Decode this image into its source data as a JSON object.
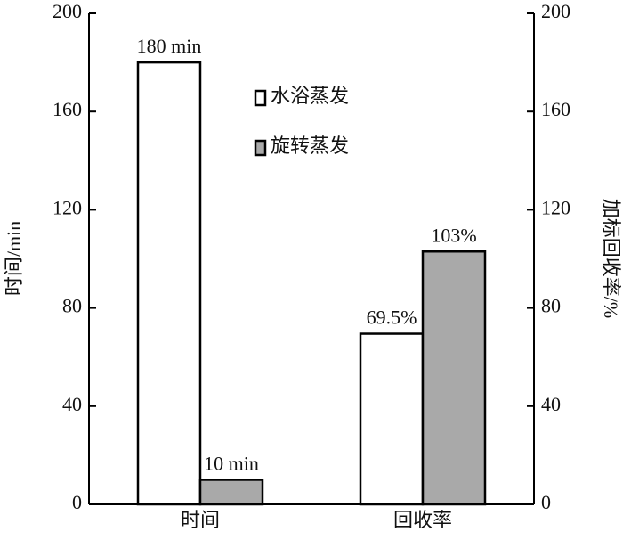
{
  "chart_data": {
    "type": "bar",
    "categories": [
      "时间",
      "回收率"
    ],
    "series": [
      {
        "name": "水浴蒸发",
        "color": "#ffffff",
        "values": [
          180,
          69.5
        ],
        "value_labels": [
          "180 min",
          "69.5%"
        ]
      },
      {
        "name": "旋转蒸发",
        "color": "#a9a9a9",
        "values": [
          10,
          103
        ],
        "value_labels": [
          "10 min",
          "103%"
        ]
      }
    ],
    "ylabel": "时间/min",
    "y2label": "加标回收率/%",
    "ylim": [
      0,
      200
    ],
    "yticks": [
      0,
      40,
      80,
      120,
      160,
      200
    ],
    "y2lim": [
      0,
      200
    ],
    "y2ticks": [
      0,
      40,
      80,
      120,
      160,
      200
    ],
    "grid": false,
    "legend": "top-center"
  }
}
